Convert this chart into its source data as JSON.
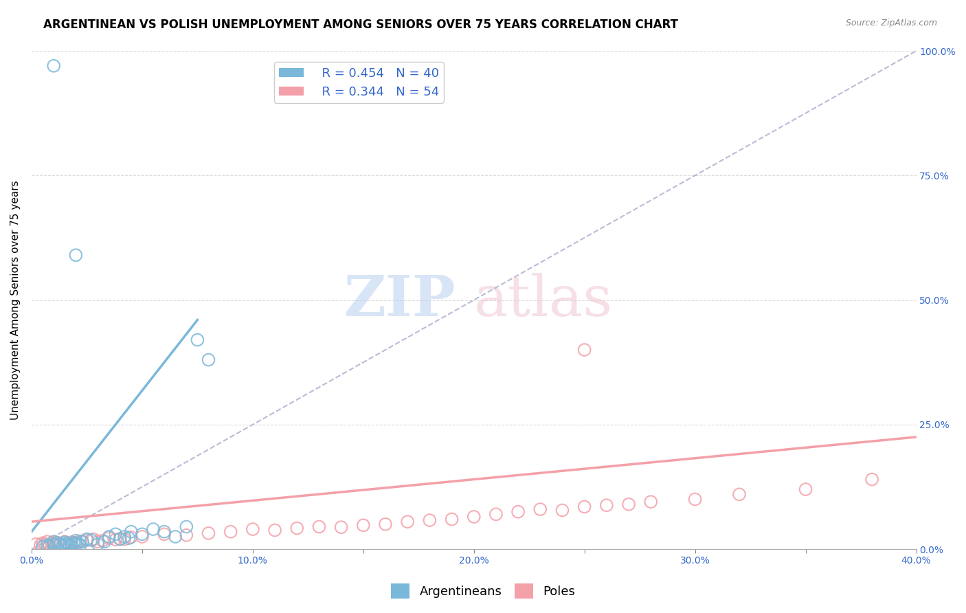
{
  "title": "ARGENTINEAN VS POLISH UNEMPLOYMENT AMONG SENIORS OVER 75 YEARS CORRELATION CHART",
  "source": "Source: ZipAtlas.com",
  "ylabel": "Unemployment Among Seniors over 75 years",
  "xlim": [
    0.0,
    0.4
  ],
  "ylim": [
    0.0,
    1.0
  ],
  "xtick_labels": [
    "0.0%",
    "",
    "10.0%",
    "",
    "20.0%",
    "",
    "30.0%",
    "",
    "40.0%"
  ],
  "xtick_vals": [
    0.0,
    0.05,
    0.1,
    0.15,
    0.2,
    0.25,
    0.3,
    0.35,
    0.4
  ],
  "ytick_vals": [
    0.0,
    0.25,
    0.5,
    0.75,
    1.0
  ],
  "right_ytick_labels": [
    "0.0%",
    "25.0%",
    "50.0%",
    "75.0%",
    "100.0%"
  ],
  "argentinean_color": "#7ab8d9",
  "polish_color": "#f4a0a8",
  "argentinean_R": 0.454,
  "argentinean_N": 40,
  "polish_R": 0.344,
  "polish_N": 54,
  "bg_color": "#ffffff",
  "grid_color": "#dddddd",
  "legend_color": "#3366cc",
  "arg_trend_x0": 0.0,
  "arg_trend_y0": 0.035,
  "arg_trend_x1": 0.075,
  "arg_trend_y1": 0.46,
  "pol_trend_x0": 0.0,
  "pol_trend_y0": 0.055,
  "pol_trend_x1": 0.4,
  "pol_trend_y1": 0.225,
  "argentinean_x": [
    0.005,
    0.007,
    0.008,
    0.01,
    0.01,
    0.011,
    0.012,
    0.013,
    0.014,
    0.015,
    0.015,
    0.016,
    0.017,
    0.018,
    0.018,
    0.019,
    0.02,
    0.02,
    0.021,
    0.022,
    0.023,
    0.025,
    0.027,
    0.03,
    0.033,
    0.035,
    0.038,
    0.04,
    0.042,
    0.044,
    0.045,
    0.05,
    0.055,
    0.06,
    0.065,
    0.07,
    0.075,
    0.08,
    0.02,
    0.01
  ],
  "argentinean_y": [
    0.005,
    0.008,
    0.006,
    0.01,
    0.015,
    0.008,
    0.012,
    0.01,
    0.007,
    0.009,
    0.014,
    0.012,
    0.008,
    0.011,
    0.006,
    0.013,
    0.01,
    0.017,
    0.012,
    0.008,
    0.015,
    0.02,
    0.018,
    0.01,
    0.015,
    0.025,
    0.03,
    0.02,
    0.025,
    0.022,
    0.035,
    0.03,
    0.04,
    0.035,
    0.025,
    0.045,
    0.42,
    0.38,
    0.59,
    0.97
  ],
  "polish_x": [
    0.002,
    0.004,
    0.005,
    0.006,
    0.007,
    0.008,
    0.009,
    0.01,
    0.011,
    0.012,
    0.013,
    0.015,
    0.016,
    0.018,
    0.02,
    0.022,
    0.025,
    0.028,
    0.03,
    0.032,
    0.035,
    0.038,
    0.04,
    0.042,
    0.045,
    0.05,
    0.06,
    0.07,
    0.08,
    0.09,
    0.1,
    0.11,
    0.12,
    0.13,
    0.14,
    0.15,
    0.16,
    0.17,
    0.18,
    0.19,
    0.2,
    0.21,
    0.22,
    0.23,
    0.24,
    0.25,
    0.26,
    0.27,
    0.28,
    0.3,
    0.32,
    0.35,
    0.38,
    0.25
  ],
  "polish_y": [
    0.01,
    0.008,
    0.012,
    0.01,
    0.015,
    0.008,
    0.012,
    0.01,
    0.014,
    0.012,
    0.01,
    0.015,
    0.012,
    0.014,
    0.013,
    0.016,
    0.018,
    0.02,
    0.015,
    0.017,
    0.022,
    0.019,
    0.021,
    0.02,
    0.024,
    0.025,
    0.03,
    0.028,
    0.032,
    0.035,
    0.04,
    0.038,
    0.042,
    0.045,
    0.044,
    0.048,
    0.05,
    0.055,
    0.058,
    0.06,
    0.065,
    0.07,
    0.075,
    0.08,
    0.078,
    0.085,
    0.088,
    0.09,
    0.095,
    0.1,
    0.11,
    0.12,
    0.14,
    0.4
  ]
}
